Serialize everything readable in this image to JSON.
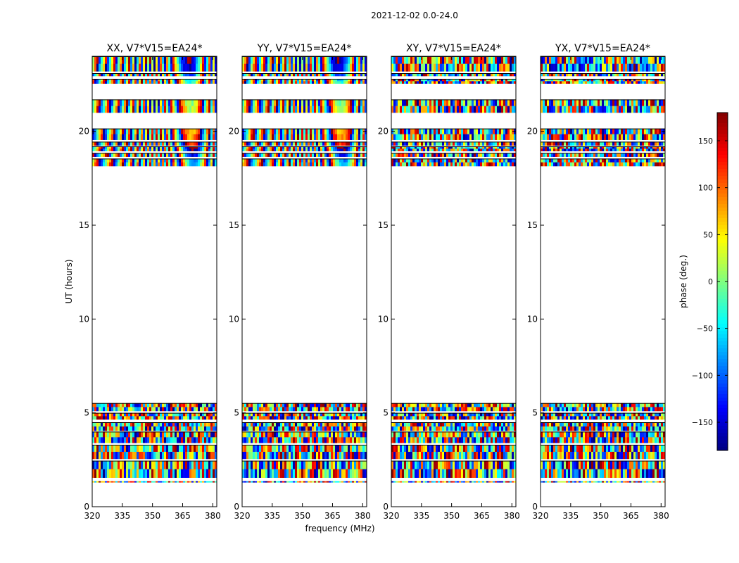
{
  "figure": {
    "suptitle": "2021-12-02 0.0-24.0"
  },
  "chart_data": {
    "type": "heatmap",
    "xlabel": "frequency (MHz)",
    "ylabel": "UT (hours)",
    "xlim": [
      320,
      382
    ],
    "ylim": [
      0,
      24
    ],
    "xticks": [
      320,
      335,
      350,
      365,
      380
    ],
    "yticks": [
      0,
      5,
      10,
      15,
      20
    ],
    "panels": [
      {
        "title": "XX, V7*V15=EA24*",
        "pattern": "coherent"
      },
      {
        "title": "YY, V7*V15=EA24*",
        "pattern": "coherent"
      },
      {
        "title": "XY, V7*V15=EA24*",
        "pattern": "noisy"
      },
      {
        "title": "YX, V7*V15=EA24*",
        "pattern": "noisy"
      }
    ],
    "data_bands_hours": [
      [
        1.3,
        1.36
      ],
      [
        1.55,
        2.45
      ],
      [
        2.55,
        3.3
      ],
      [
        3.4,
        4.0
      ],
      [
        4.05,
        4.5
      ],
      [
        4.65,
        5.0
      ],
      [
        5.1,
        5.52
      ],
      [
        18.15,
        18.55
      ],
      [
        18.65,
        18.85
      ],
      [
        18.95,
        19.2
      ],
      [
        19.25,
        19.45
      ],
      [
        19.55,
        20.15
      ],
      [
        21.0,
        21.7
      ],
      [
        22.55,
        22.8
      ],
      [
        22.95,
        23.1
      ],
      [
        23.2,
        24.0
      ]
    ],
    "colorbar": {
      "label": "phase (deg.)",
      "range": [
        -180,
        180
      ],
      "ticks": [
        150,
        100,
        50,
        0,
        -50,
        -100,
        -150
      ],
      "tick_labels": [
        "150",
        "100",
        "50",
        "0",
        "−50",
        "−100",
        "−150"
      ],
      "colormap": "jet"
    }
  }
}
